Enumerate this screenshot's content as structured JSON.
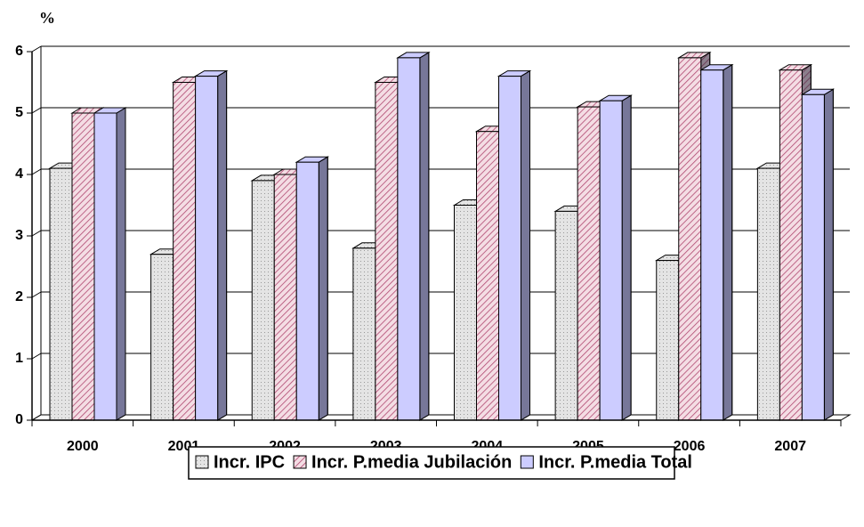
{
  "chart_data": {
    "type": "bar3d",
    "y_label": "%",
    "categories": [
      "2000",
      "2001",
      "2002",
      "2003",
      "2004",
      "2005",
      "2006",
      "2007"
    ],
    "series": [
      {
        "name": "Incr. IPC",
        "color": "#e4e4e4",
        "values": [
          4.1,
          2.7,
          3.9,
          2.8,
          3.5,
          3.4,
          2.6,
          4.1
        ]
      },
      {
        "name": "Incr. P.media Jubilación",
        "color": "#f0c8d4",
        "values": [
          5.0,
          5.5,
          4.0,
          5.5,
          4.7,
          5.1,
          5.9,
          5.7
        ]
      },
      {
        "name": "Incr. P.media Total",
        "color": "#ccccff",
        "values": [
          5.0,
          5.6,
          4.2,
          5.9,
          5.6,
          5.2,
          5.7,
          5.3
        ]
      }
    ],
    "ylim": [
      0,
      6
    ],
    "yticks": [
      0,
      1,
      2,
      3,
      4,
      5,
      6
    ],
    "grid": true,
    "legend": "bottom"
  }
}
